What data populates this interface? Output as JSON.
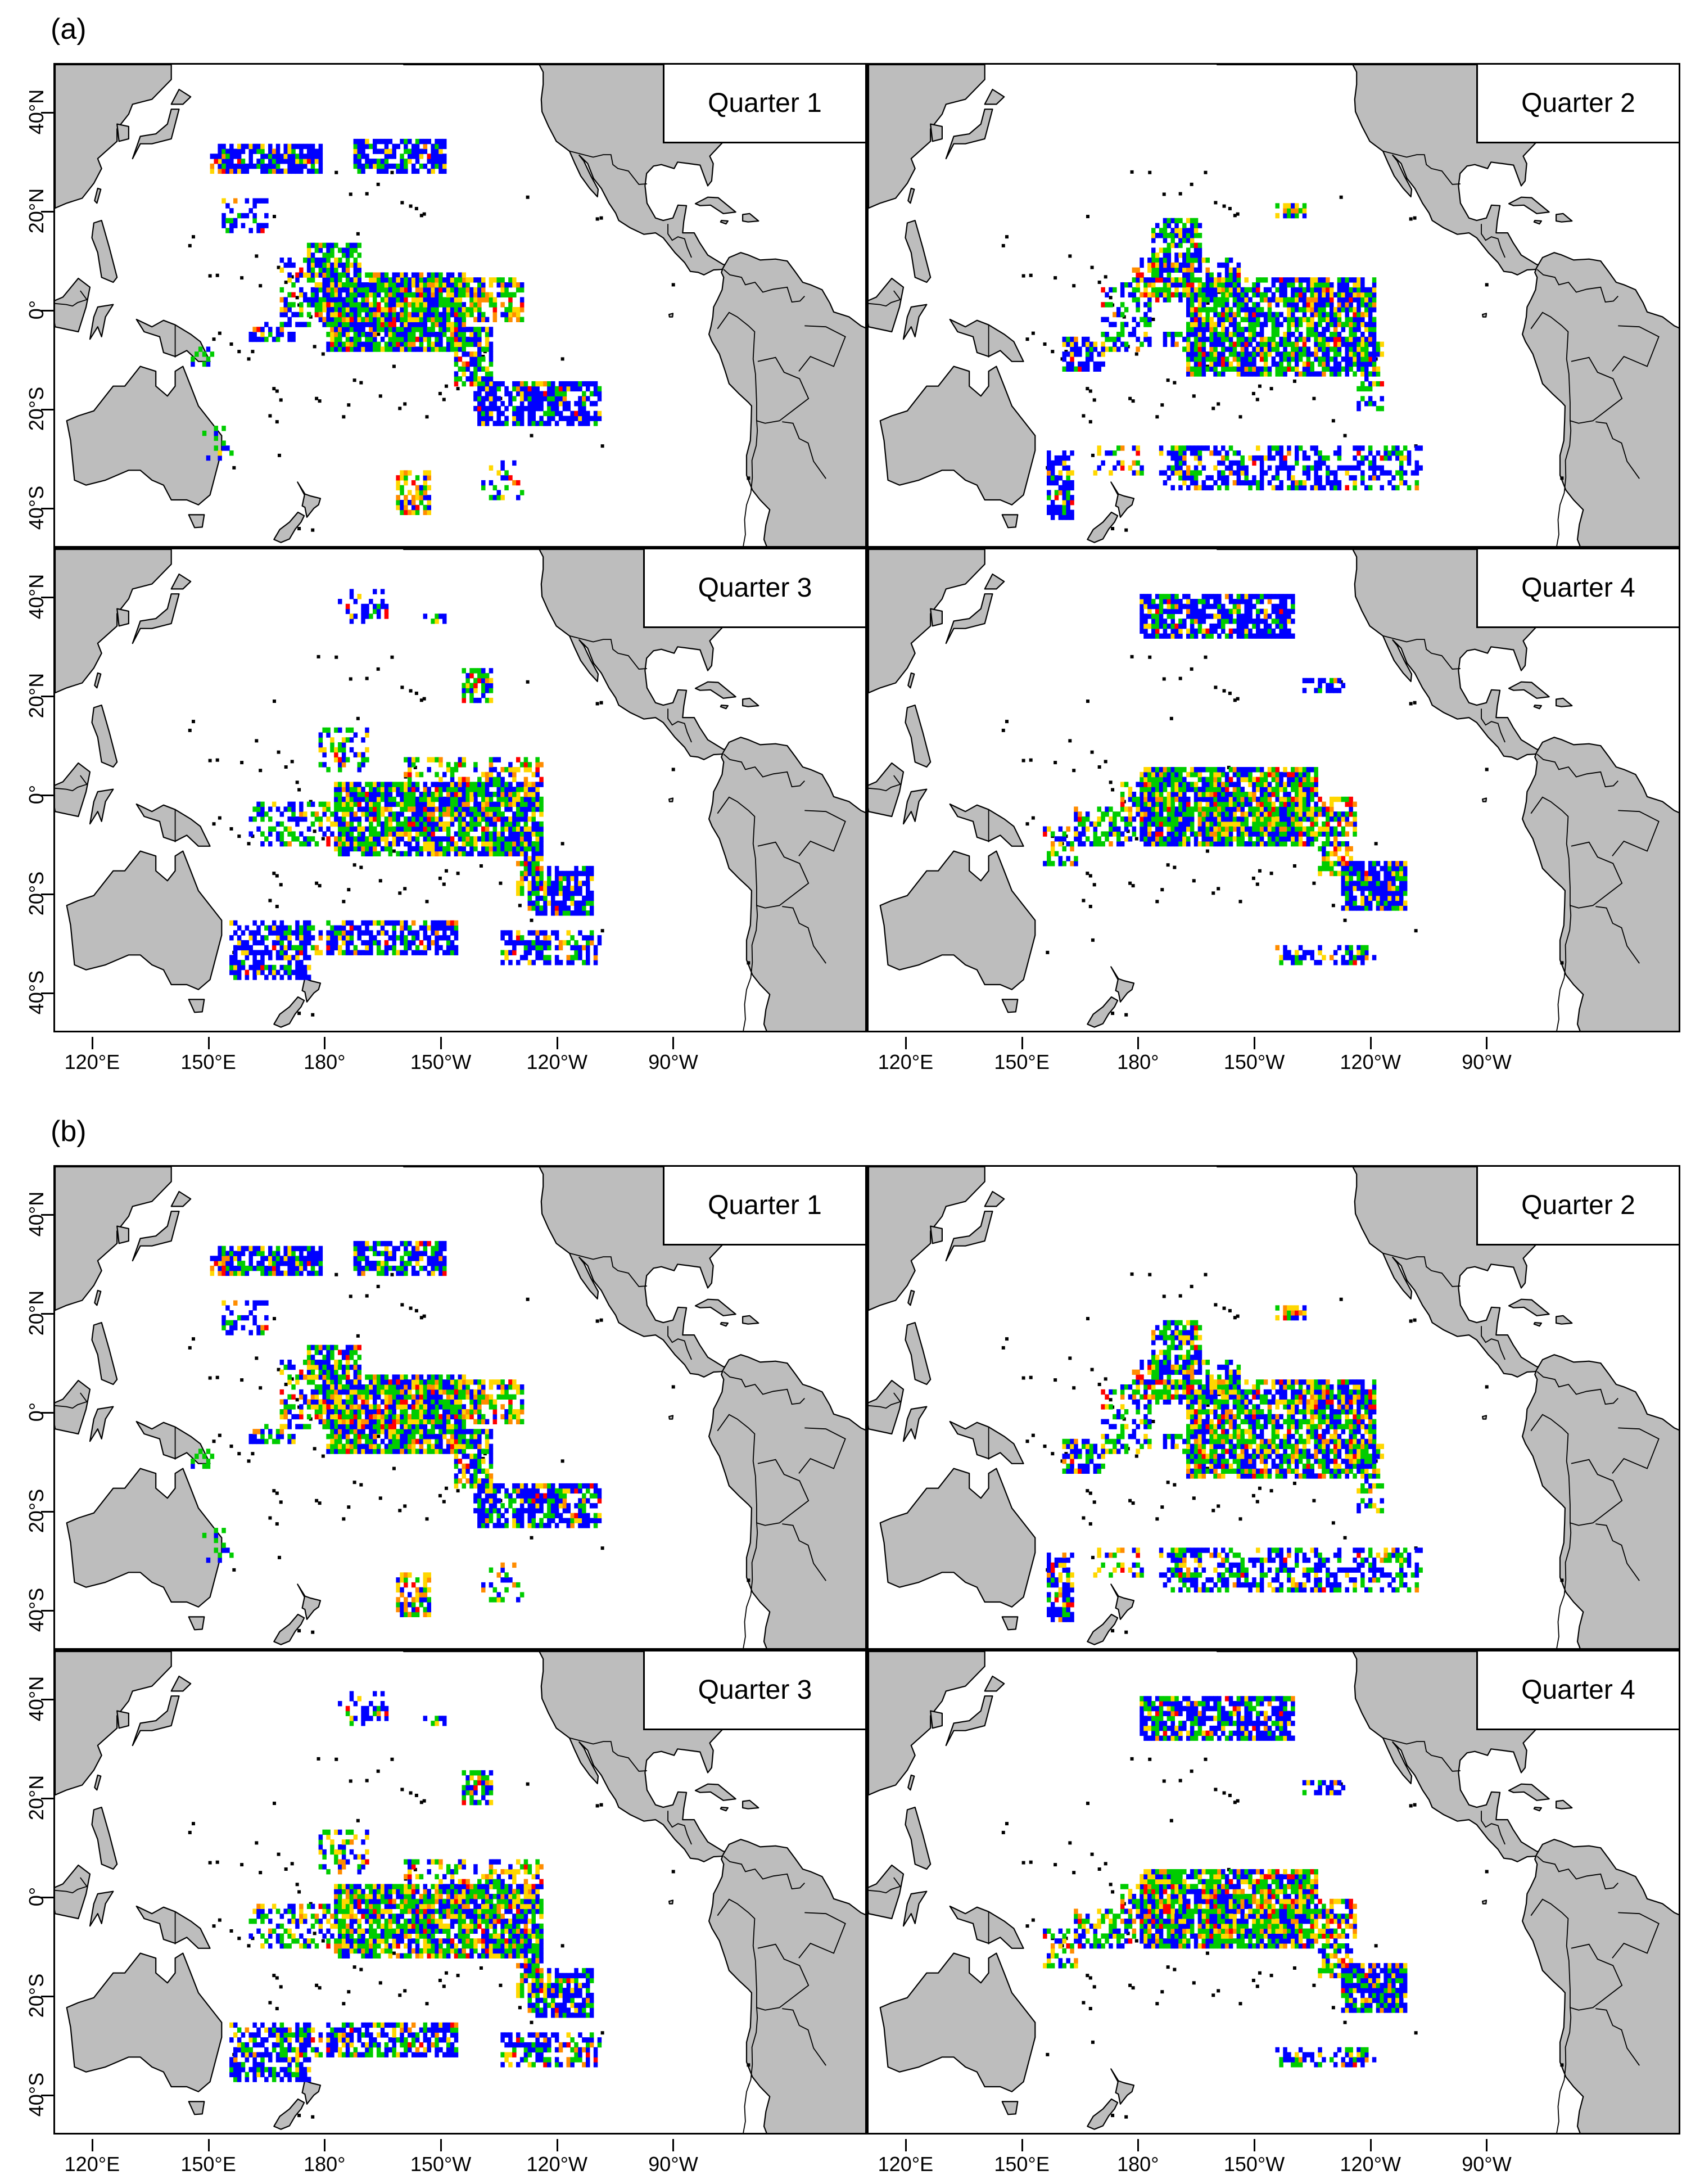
{
  "figure_labels": {
    "a": "(a)",
    "b": "(b)"
  },
  "quarters": [
    "Quarter 1",
    "Quarter 2",
    "Quarter 3",
    "Quarter 4"
  ],
  "lat_ticks": [
    "40°N",
    "20°N",
    "0°",
    "20°S",
    "40°S"
  ],
  "lon_ticks": [
    "120°E",
    "150°E",
    "180°",
    "150°W",
    "120°W",
    "90°W"
  ],
  "colors": {
    "land": "#bdbdbd",
    "coast": "#000000",
    "blue": "#0000ff",
    "green": "#00cc00",
    "yellow": "#ffd700",
    "orange": "#ff8c00",
    "red": "#ff0000"
  },
  "map_extent": {
    "lon_min": 110,
    "lon_max": 320,
    "lat_min": -48,
    "lat_max": 50
  }
}
